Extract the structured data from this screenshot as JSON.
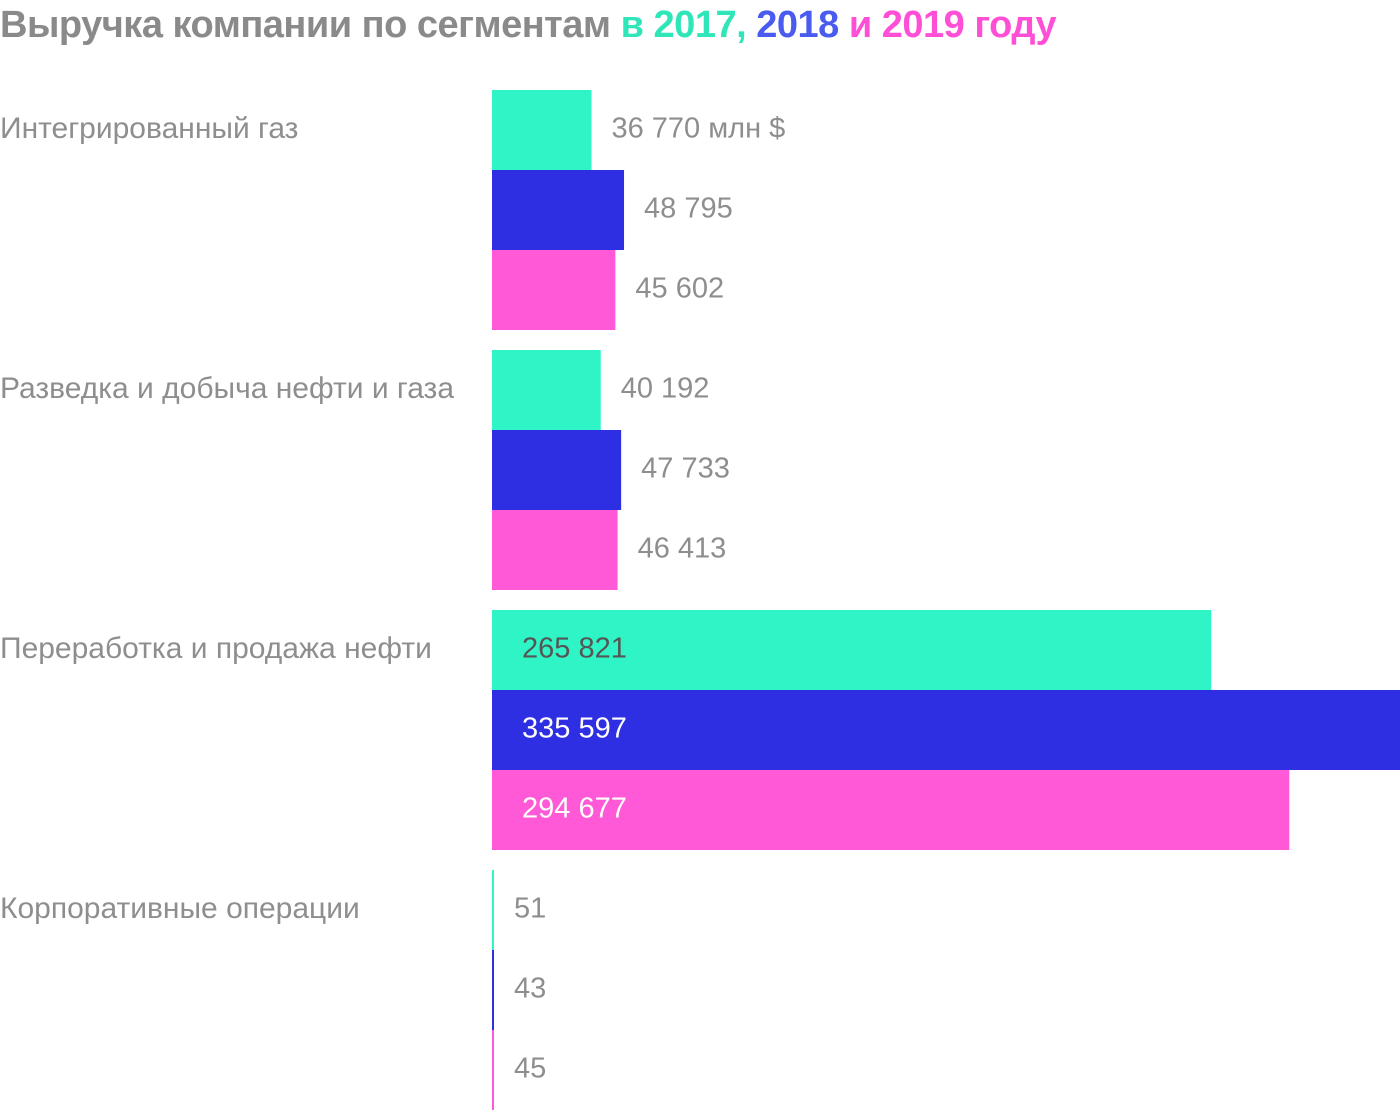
{
  "title": {
    "main": "Выручка компании по сегментам",
    "prefix": "в",
    "y1": "2017,",
    "y2": "2018",
    "mid": "и",
    "y3": "2019",
    "suffix": "году"
  },
  "colors": {
    "title_gray": "#8a8a8a",
    "y2017": "#2ff5c6",
    "y2018": "#2e2ee3",
    "y2019": "#ff59d8",
    "title_y2017": "#2ee6b8",
    "title_y2018": "#4a5cf0",
    "title_y2019": "#ff4fd6",
    "label_gray": "#8e8e8e"
  },
  "chart_data": {
    "type": "bar",
    "orientation": "horizontal",
    "unit": "млн $",
    "categories": [
      "Интегрированный газ",
      "Разведка и добыча нефти и газа",
      "Переработка и продажа нефти",
      "Корпоративные операции"
    ],
    "series": [
      {
        "name": "2017",
        "color": "#2ff5c6",
        "values": [
          36770,
          40192,
          265821,
          51
        ],
        "labels": [
          "36 770 млн $",
          "40 192",
          "265 821",
          "51"
        ]
      },
      {
        "name": "2018",
        "color": "#2e2ee3",
        "values": [
          48795,
          47733,
          335597,
          43
        ],
        "labels": [
          "48 795",
          "47 733",
          "335 597",
          "43"
        ]
      },
      {
        "name": "2019",
        "color": "#ff59d8",
        "values": [
          45602,
          46413,
          294677,
          45
        ],
        "labels": [
          "45 602",
          "46 413",
          "294 677",
          "45"
        ]
      }
    ],
    "xlim": [
      0,
      335597
    ],
    "grid": false,
    "legend": "title"
  }
}
